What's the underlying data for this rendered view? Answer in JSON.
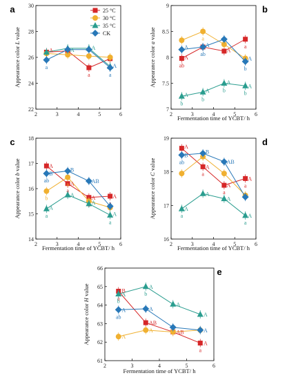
{
  "series_colors": {
    "25 °C": "#d62728",
    "30 °C": "#f0b030",
    "35 °C": "#2a9d8f",
    "CK": "#2878b8"
  },
  "series_markers": {
    "25 °C": "square",
    "30 °C": "circle",
    "35 °C": "triangle",
    "CK": "diamond"
  },
  "chart_data": [
    {
      "type": "line",
      "panel": "a",
      "ylabel_prefix": "Appearance color ",
      "ylabel_var": "L",
      "ylabel_suffix": " value",
      "xlabel": "",
      "xlim": [
        2,
        6
      ],
      "ylim": [
        22,
        30
      ],
      "xticks": [
        2,
        3,
        4,
        5,
        6
      ],
      "yticks": [
        22,
        24,
        26,
        28,
        30
      ],
      "x": [
        2.5,
        3.5,
        4.5,
        5.5
      ],
      "legend": {
        "position": "top-right",
        "entries": [
          "25 °C",
          "30 °C",
          "35 °C",
          "CK"
        ]
      },
      "series": [
        {
          "name": "25 °C",
          "values": [
            26.4,
            26.5,
            25.2,
            25.9
          ],
          "labels": [
            "a",
            "",
            "a",
            ""
          ]
        },
        {
          "name": "30 °C",
          "values": [
            26.3,
            26.2,
            26.1,
            26.0
          ],
          "labels": [
            "",
            "",
            "",
            ""
          ]
        },
        {
          "name": "35 °C",
          "values": [
            26.4,
            26.7,
            26.7,
            25.3
          ],
          "labels": [
            "",
            "",
            "",
            ""
          ]
        },
        {
          "name": "CK",
          "values": [
            25.8,
            26.6,
            26.6,
            25.2
          ],
          "labels": [
            "a",
            "",
            "",
            "a"
          ]
        }
      ],
      "annotations": [
        {
          "x": 2.62,
          "y": 26.55,
          "text": "A",
          "series": "25 °C"
        },
        {
          "x": 3.62,
          "y": 26.6,
          "text": "A",
          "series": "35 °C"
        },
        {
          "x": 4.62,
          "y": 26.75,
          "text": "A",
          "series": "35 °C"
        },
        {
          "x": 5.62,
          "y": 25.35,
          "text": "A",
          "series": "CK"
        }
      ]
    },
    {
      "type": "line",
      "panel": "b",
      "ylabel_prefix": "Appearance color ",
      "ylabel_var": "a",
      "ylabel_suffix": " value",
      "xlabel": "Fermentation time of YCBT/ h",
      "xlim": [
        2,
        6
      ],
      "ylim": [
        7.0,
        9.0
      ],
      "xticks": [
        2,
        3,
        4,
        5,
        6
      ],
      "yticks": [
        7.0,
        7.5,
        8.0,
        8.5,
        9.0
      ],
      "x": [
        2.5,
        3.5,
        4.5,
        5.5
      ],
      "series": [
        {
          "name": "25 °C",
          "values": [
            7.98,
            8.2,
            8.12,
            8.35
          ],
          "labels": [
            "ab",
            "",
            "",
            "a"
          ]
        },
        {
          "name": "30 °C",
          "values": [
            8.33,
            8.5,
            8.25,
            7.98
          ],
          "labels": [
            "a",
            "a",
            "",
            ""
          ]
        },
        {
          "name": "35 °C",
          "values": [
            7.25,
            7.33,
            7.5,
            7.45
          ],
          "labels": [
            "b",
            "b",
            "b",
            "b"
          ]
        },
        {
          "name": "CK",
          "values": [
            8.15,
            8.2,
            8.35,
            7.92
          ],
          "labels": [
            "",
            "ab",
            "",
            "b"
          ]
        }
      ],
      "annotations": [
        {
          "x": 2.62,
          "y": 8.0,
          "text": "A",
          "series": "25 °C"
        },
        {
          "x": 2.62,
          "y": 8.2,
          "text": "A",
          "series": "CK"
        },
        {
          "x": 3.62,
          "y": 8.24,
          "text": "A",
          "series": "CK"
        },
        {
          "x": 4.62,
          "y": 8.14,
          "text": "A",
          "series": "25 °C"
        },
        {
          "x": 5.62,
          "y": 7.98,
          "text": "A",
          "series": "CK"
        },
        {
          "x": 2.62,
          "y": 7.28,
          "text": "A",
          "series": "35 °C"
        },
        {
          "x": 3.62,
          "y": 7.36,
          "text": "A",
          "series": "35 °C"
        },
        {
          "x": 4.62,
          "y": 7.52,
          "text": "A",
          "series": "35 °C"
        },
        {
          "x": 5.62,
          "y": 7.45,
          "text": "A",
          "series": "35 °C"
        }
      ]
    },
    {
      "type": "line",
      "panel": "c",
      "ylabel_prefix": "Appearance color ",
      "ylabel_var": "b",
      "ylabel_suffix": " value",
      "xlabel": "Fermentation time of YCBT/ h",
      "xlim": [
        2,
        6
      ],
      "ylim": [
        14,
        18
      ],
      "xticks": [
        2,
        3,
        4,
        5,
        6
      ],
      "yticks": [
        14,
        15,
        16,
        17,
        18
      ],
      "x": [
        2.5,
        3.5,
        4.5,
        5.5
      ],
      "series": [
        {
          "name": "25 °C",
          "values": [
            16.9,
            16.2,
            15.65,
            15.7
          ],
          "labels": [
            "a",
            "a",
            "a",
            "a"
          ]
        },
        {
          "name": "30 °C",
          "values": [
            15.9,
            16.45,
            15.5,
            15.25
          ],
          "labels": [
            "b",
            "a",
            "",
            ""
          ]
        },
        {
          "name": "35 °C",
          "values": [
            15.2,
            15.75,
            15.4,
            14.95
          ],
          "labels": [
            "a",
            "",
            "",
            "a"
          ]
        },
        {
          "name": "CK",
          "values": [
            16.6,
            16.7,
            16.3,
            15.3
          ],
          "labels": [
            "ab",
            "",
            "",
            ""
          ]
        }
      ],
      "annotations": [
        {
          "x": 2.62,
          "y": 16.9,
          "text": "A",
          "series": "25 °C"
        },
        {
          "x": 2.62,
          "y": 16.6,
          "text": "B",
          "series": "CK"
        },
        {
          "x": 3.62,
          "y": 16.75,
          "text": "B",
          "series": "CK"
        },
        {
          "x": 3.62,
          "y": 16.2,
          "text": "A",
          "series": "25 °C"
        },
        {
          "x": 4.62,
          "y": 16.3,
          "text": "AB",
          "series": "CK"
        },
        {
          "x": 4.62,
          "y": 15.65,
          "text": "A",
          "series": "25 °C"
        },
        {
          "x": 5.62,
          "y": 15.7,
          "text": "A",
          "series": "25 °C"
        },
        {
          "x": 2.62,
          "y": 15.25,
          "text": "A",
          "series": "35 °C"
        },
        {
          "x": 3.62,
          "y": 15.75,
          "text": "A",
          "series": "35 °C"
        },
        {
          "x": 4.62,
          "y": 15.45,
          "text": "A",
          "series": "35 °C"
        },
        {
          "x": 5.62,
          "y": 15.0,
          "text": "A",
          "series": "35 °C"
        }
      ]
    },
    {
      "type": "line",
      "panel": "d",
      "ylabel_prefix": "Appearance color ",
      "ylabel_var": "C",
      "ylabel_suffix": " value",
      "xlabel": "Fermentation time of YCBT/ h",
      "xlim": [
        2,
        6
      ],
      "ylim": [
        16,
        19
      ],
      "xticks": [
        2,
        3,
        4,
        5,
        6
      ],
      "yticks": [
        16,
        17,
        18,
        19
      ],
      "x": [
        2.5,
        3.5,
        4.5,
        5.5
      ],
      "series": [
        {
          "name": "25 °C",
          "values": [
            18.7,
            18.15,
            17.6,
            17.8
          ],
          "labels": [
            "a",
            "a",
            "a",
            "a"
          ]
        },
        {
          "name": "30 °C",
          "values": [
            17.95,
            18.45,
            17.95,
            17.3
          ],
          "labels": [
            "",
            "",
            "",
            ""
          ]
        },
        {
          "name": "35 °C",
          "values": [
            16.9,
            17.35,
            17.2,
            16.7
          ],
          "labels": [
            "a",
            "",
            "",
            "a"
          ]
        },
        {
          "name": "CK",
          "values": [
            18.5,
            18.55,
            18.3,
            17.25
          ],
          "labels": [
            "ab",
            "",
            "",
            ""
          ]
        }
      ],
      "annotations": [
        {
          "x": 2.62,
          "y": 18.75,
          "text": "A",
          "series": "25 °C"
        },
        {
          "x": 2.62,
          "y": 18.5,
          "text": "B",
          "series": "CK"
        },
        {
          "x": 3.62,
          "y": 18.6,
          "text": "B",
          "series": "CK"
        },
        {
          "x": 3.62,
          "y": 18.15,
          "text": "A",
          "series": "25 °C"
        },
        {
          "x": 4.62,
          "y": 18.3,
          "text": "AB",
          "series": "CK"
        },
        {
          "x": 4.62,
          "y": 17.6,
          "text": "A",
          "series": "25 °C"
        },
        {
          "x": 5.62,
          "y": 17.8,
          "text": "A",
          "series": "25 °C"
        },
        {
          "x": 2.62,
          "y": 16.9,
          "text": "A",
          "series": "35 °C"
        },
        {
          "x": 3.62,
          "y": 17.35,
          "text": "A",
          "series": "35 °C"
        },
        {
          "x": 4.62,
          "y": 17.2,
          "text": "A",
          "series": "35 °C"
        },
        {
          "x": 5.62,
          "y": 16.7,
          "text": "A",
          "series": "35 °C"
        }
      ]
    },
    {
      "type": "line",
      "panel": "e",
      "ylabel_prefix": "Appearance color ",
      "ylabel_var": "H",
      "ylabel_suffix": " value",
      "xlabel": "Fermentation time of YCBT/ h",
      "xlim": [
        2,
        6
      ],
      "ylim": [
        61,
        66
      ],
      "xticks": [
        2,
        3,
        4,
        5,
        6
      ],
      "yticks": [
        61,
        62,
        63,
        64,
        65,
        66
      ],
      "x": [
        2.5,
        3.5,
        4.5,
        5.5
      ],
      "series": [
        {
          "name": "25 °C",
          "values": [
            64.75,
            63.05,
            62.55,
            61.95
          ],
          "labels": [
            "a",
            "a",
            "",
            "a"
          ]
        },
        {
          "name": "30 °C",
          "values": [
            62.3,
            62.65,
            62.55,
            62.65
          ],
          "labels": [
            "",
            "",
            "",
            ""
          ]
        },
        {
          "name": "35 °C",
          "values": [
            64.6,
            65.0,
            64.05,
            63.5
          ],
          "labels": [
            "b",
            "b",
            "",
            ""
          ]
        },
        {
          "name": "CK",
          "values": [
            63.75,
            63.8,
            62.8,
            62.65
          ],
          "labels": [
            "ab",
            "",
            "",
            ""
          ]
        }
      ],
      "annotations": [
        {
          "x": 2.62,
          "y": 64.78,
          "text": "B",
          "series": "25 °C"
        },
        {
          "x": 2.62,
          "y": 64.58,
          "text": "A",
          "series": "35 °C"
        },
        {
          "x": 2.62,
          "y": 63.75,
          "text": "A",
          "series": "CK"
        },
        {
          "x": 2.62,
          "y": 62.3,
          "text": "A",
          "series": "30 °C"
        },
        {
          "x": 3.62,
          "y": 65.0,
          "text": "A",
          "series": "35 °C"
        },
        {
          "x": 3.62,
          "y": 63.8,
          "text": "A",
          "series": "CK"
        },
        {
          "x": 3.62,
          "y": 63.05,
          "text": "AB",
          "series": "25 °C"
        },
        {
          "x": 3.62,
          "y": 62.65,
          "text": "A",
          "series": "30 °C"
        },
        {
          "x": 4.62,
          "y": 64.05,
          "text": "A",
          "series": "35 °C"
        },
        {
          "x": 4.62,
          "y": 62.55,
          "text": "AB",
          "series": "25 °C"
        },
        {
          "x": 5.62,
          "y": 63.5,
          "text": "A",
          "series": "35 °C"
        },
        {
          "x": 5.62,
          "y": 62.65,
          "text": "A",
          "series": "CK"
        },
        {
          "x": 5.62,
          "y": 61.95,
          "text": "A",
          "series": "25 °C"
        }
      ]
    }
  ]
}
